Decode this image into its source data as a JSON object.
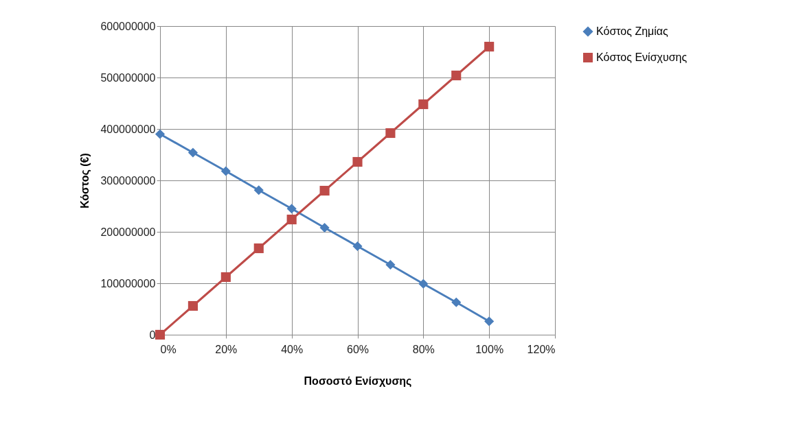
{
  "chart_data": {
    "type": "line",
    "xlabel": "Ποσοστό Ενίσχυσης",
    "ylabel": "Κόστος (€)",
    "x": [
      0,
      0.1,
      0.2,
      0.3,
      0.4,
      0.5,
      0.6,
      0.7,
      0.8,
      0.9,
      1
    ],
    "series": [
      {
        "name": "Κόστος Ζημίας",
        "color": "#4a7ebb",
        "marker": "diamond",
        "values": [
          390000000,
          354000000,
          318000000,
          281000000,
          245000000,
          208000000,
          172000000,
          136000000,
          99000000,
          63000000,
          26000000
        ]
      },
      {
        "name": "Κόστος Ενίσχυσης",
        "color": "#be4b48",
        "marker": "square",
        "values": [
          0,
          56000000,
          112000000,
          168000000,
          224000000,
          280000000,
          336000000,
          392000000,
          448000000,
          504000000,
          560000000
        ]
      }
    ],
    "xlim": [
      0,
      1.2
    ],
    "xticks": [
      {
        "value": 0,
        "label": "0%"
      },
      {
        "value": 0.2,
        "label": "20%"
      },
      {
        "value": 0.4,
        "label": "40%"
      },
      {
        "value": 0.6,
        "label": "60%"
      },
      {
        "value": 0.8,
        "label": "80%"
      },
      {
        "value": 1,
        "label": "100%"
      },
      {
        "value": 1.2,
        "label": "120%"
      }
    ],
    "ylim": [
      0,
      600000000
    ],
    "yticks": [
      0,
      100000000,
      200000000,
      300000000,
      400000000,
      500000000,
      600000000
    ],
    "grid": true,
    "legend": "right"
  }
}
